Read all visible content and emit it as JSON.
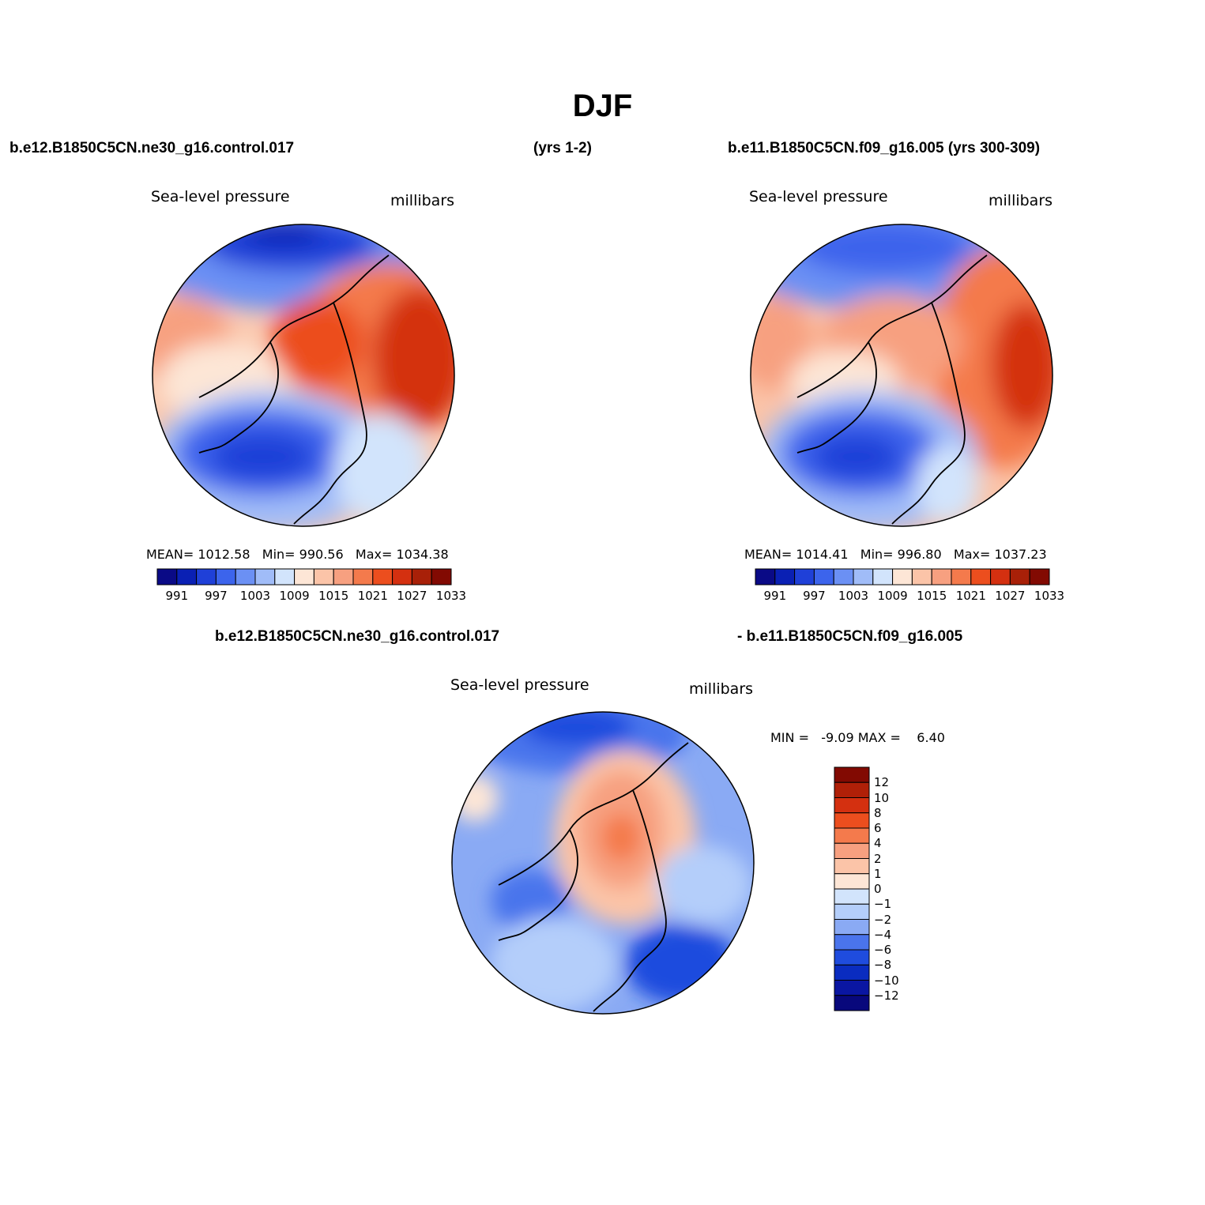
{
  "title": "DJF",
  "header": {
    "left_case": "b.e12.B1850C5CN.ne30_g16.control.017",
    "left_years": "(yrs 1-2)",
    "right_case": "b.e11.B1850C5CN.f09_g16.005 (yrs 300-309)"
  },
  "panels": [
    {
      "variable": "Sea-level pressure",
      "units": "millibars",
      "stats": {
        "mean_label": "MEAN=",
        "mean": "1012.58",
        "min_label": "Min=",
        "min": "990.56",
        "max_label": "Max=",
        "max": "1034.38"
      },
      "colorbar_ticks": [
        "991",
        "997",
        "1003",
        "1009",
        "1015",
        "1021",
        "1027",
        "1033"
      ],
      "colorbar_colors": [
        "#0a0a86",
        "#0a20b4",
        "#1f40d8",
        "#3c64ec",
        "#6b90f4",
        "#a0bcf8",
        "#d2e4fc",
        "#fde6d6",
        "#fbc4a8",
        "#f7a080",
        "#f47a4c",
        "#ec4e1e",
        "#d43010",
        "#a82008",
        "#820a02"
      ]
    },
    {
      "variable": "Sea-level pressure",
      "units": "millibars",
      "stats": {
        "mean_label": "MEAN=",
        "mean": "1014.41",
        "min_label": "Min=",
        "min": "996.80",
        "max_label": "Max=",
        "max": "1037.23"
      },
      "colorbar_ticks": [
        "991",
        "997",
        "1003",
        "1009",
        "1015",
        "1021",
        "1027",
        "1033"
      ],
      "colorbar_colors": [
        "#0a0a86",
        "#0a20b4",
        "#1f40d8",
        "#3c64ec",
        "#6b90f4",
        "#a0bcf8",
        "#d2e4fc",
        "#fde6d6",
        "#fbc4a8",
        "#f7a080",
        "#f47a4c",
        "#ec4e1e",
        "#d43010",
        "#a82008",
        "#820a02"
      ]
    }
  ],
  "diff": {
    "left_case": "b.e12.B1850C5CN.ne30_g16.control.017",
    "right_case": "- b.e11.B1850C5CN.f09_g16.005",
    "variable": "Sea-level pressure",
    "units": "millibars",
    "min_label": "MIN =",
    "min": "-9.09",
    "max_label": "MAX =",
    "max": "6.40",
    "colorbar_ticks": [
      "12",
      "10",
      "8",
      "6",
      "4",
      "2",
      "1",
      "0",
      "−1",
      "−2",
      "−4",
      "−6",
      "−8",
      "−10",
      "−12"
    ],
    "colorbar_colors": [
      "#820a02",
      "#b02008",
      "#d43010",
      "#ec4e1e",
      "#f47a4c",
      "#f7a080",
      "#fbc4a8",
      "#fde6d6",
      "#d2e4fc",
      "#b4cefa",
      "#8aaaf4",
      "#4a74ec",
      "#1f4cde",
      "#0a2cc0",
      "#0a16a2",
      "#08087c"
    ]
  }
}
